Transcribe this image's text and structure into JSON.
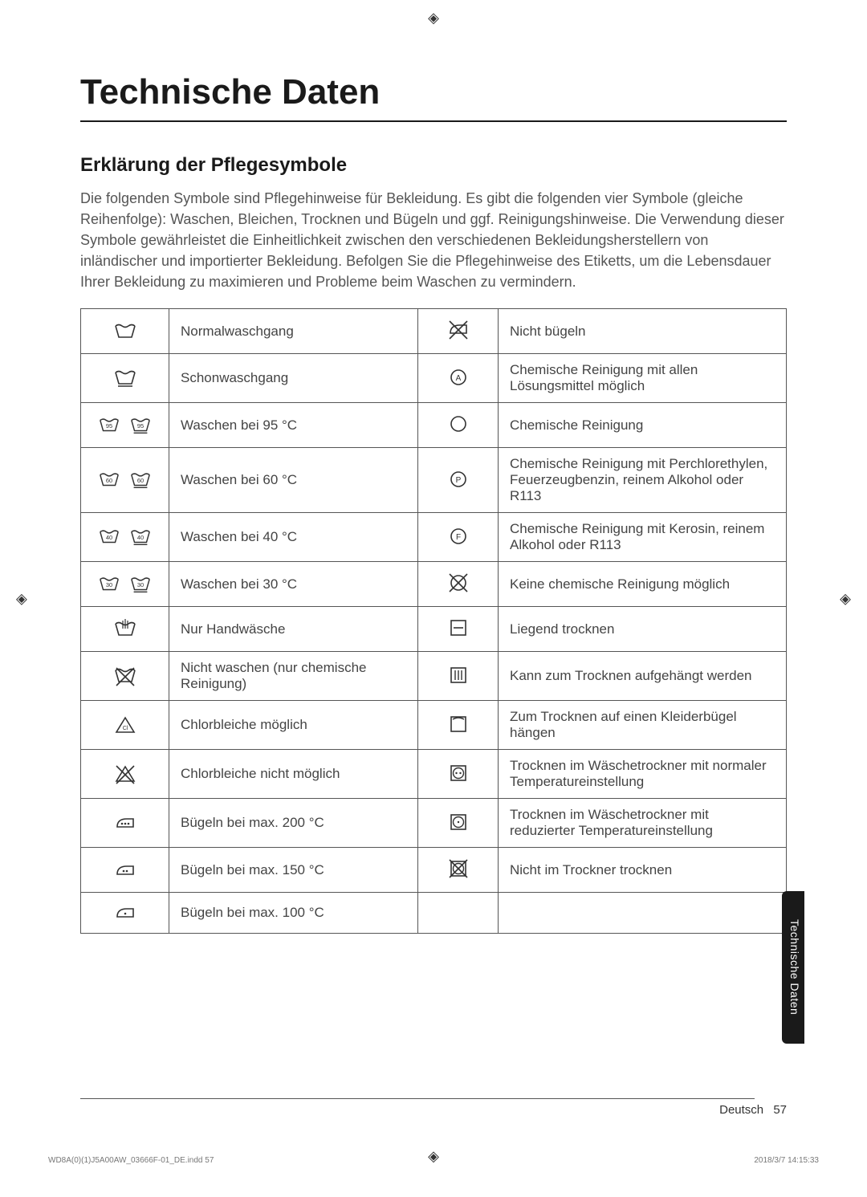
{
  "title": "Technische Daten",
  "section_heading": "Erklärung der Pflegesymbole",
  "intro": "Die folgenden Symbole sind Pflegehinweise für Bekleidung. Es gibt die folgenden vier Symbole (gleiche Reihenfolge): Waschen, Bleichen, Trocknen und Bügeln und ggf. Reinigungshinweise. Die Verwendung dieser Symbole gewährleistet die Einheitlichkeit zwischen den verschiedenen Bekleidungsherstellern von inländischer und importierter Bekleidung. Befolgen Sie die Pflegehinweise des Etiketts, um die Lebensdauer Ihrer Bekleidung zu maximieren und Probleme beim Waschen zu vermindern.",
  "rows": [
    {
      "left_icon": "wash-normal",
      "left_label": "Normalwaschgang",
      "right_icon": "iron-no",
      "right_label": "Nicht bügeln"
    },
    {
      "left_icon": "wash-gentle",
      "left_label": "Schonwaschgang",
      "right_icon": "dryclean-a",
      "right_label": "Chemische Reinigung mit allen Lösungsmittel möglich"
    },
    {
      "left_icon": "wash-95",
      "left_label": "Waschen bei 95 °C",
      "right_icon": "dryclean-empty",
      "right_label": "Chemische Reinigung"
    },
    {
      "left_icon": "wash-60",
      "left_label": "Waschen bei 60 °C",
      "right_icon": "dryclean-p",
      "right_label": "Chemische Reinigung mit Perchlorethylen, Feuerzeugbenzin, reinem Alkohol oder R113"
    },
    {
      "left_icon": "wash-40",
      "left_label": "Waschen bei 40 °C",
      "right_icon": "dryclean-f",
      "right_label": "Chemische Reinigung mit Kerosin, reinem Alkohol oder R113"
    },
    {
      "left_icon": "wash-30",
      "left_label": "Waschen bei 30 °C",
      "right_icon": "dryclean-no",
      "right_label": "Keine chemische Reinigung möglich"
    },
    {
      "left_icon": "hand-wash",
      "left_label": "Nur Handwäsche",
      "right_icon": "dry-flat",
      "right_label": "Liegend trocknen"
    },
    {
      "left_icon": "wash-no",
      "left_label": "Nicht waschen (nur chemische Reinigung)",
      "right_icon": "dry-hang",
      "right_label": "Kann zum Trocknen aufgehängt werden"
    },
    {
      "left_icon": "bleach-ok",
      "left_label": "Chlorbleiche möglich",
      "right_icon": "dry-hanger",
      "right_label": "Zum Trocknen auf einen Kleiderbügel hängen"
    },
    {
      "left_icon": "bleach-no",
      "left_label": "Chlorbleiche nicht möglich",
      "right_icon": "tumble-normal",
      "right_label": "Trocknen im Wäschetrockner mit normaler Temperatureinstellung"
    },
    {
      "left_icon": "iron-200",
      "left_label": "Bügeln bei max. 200 °C",
      "right_icon": "tumble-low",
      "right_label": "Trocknen im Wäschetrockner mit reduzierter Temperatureinstellung"
    },
    {
      "left_icon": "iron-150",
      "left_label": "Bügeln bei max. 150 °C",
      "right_icon": "tumble-no",
      "right_label": "Nicht im Trockner trocknen"
    },
    {
      "left_icon": "iron-100",
      "left_label": "Bügeln bei max. 100 °C",
      "right_icon": "",
      "right_label": ""
    }
  ],
  "side_tab": "Technische Daten",
  "footer_lang": "Deutsch",
  "footer_page": "57",
  "print_left": "WD8A(0)(1)J5A00AW_03666F-01_DE.indd   57",
  "print_right": "2018/3/7   14:15:33",
  "colors": {
    "text": "#333333",
    "border": "#555555",
    "tab_bg": "#1a1a1a",
    "tab_fg": "#ffffff"
  }
}
